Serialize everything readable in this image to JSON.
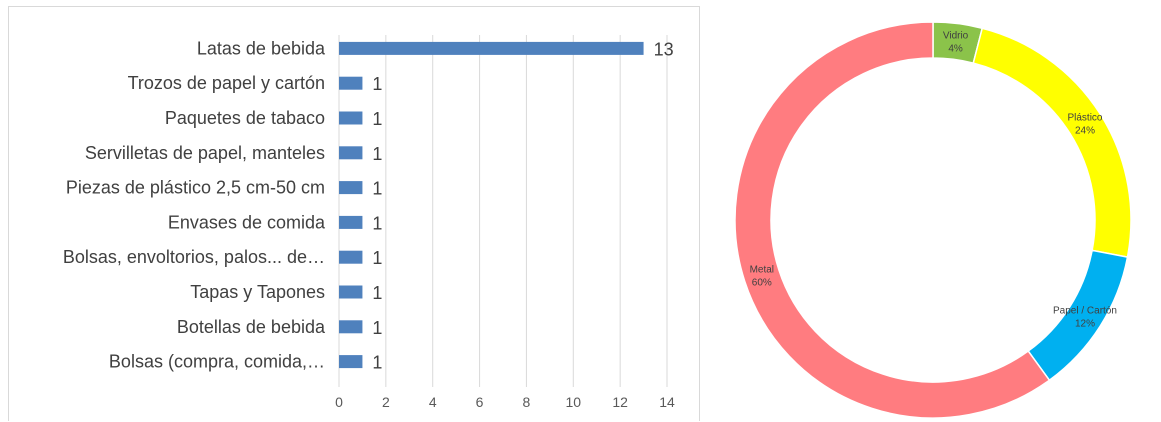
{
  "chart_data": [
    {
      "type": "bar",
      "orientation": "horizontal",
      "categories": [
        "Latas de bebida",
        "Trozos de papel y cartón",
        "Paquetes de tabaco",
        "Servilletas de papel, manteles",
        "Piezas de plástico 2,5 cm-50 cm",
        "Envases de comida",
        "Bolsas, envoltorios, palos... de…",
        "Tapas y Tapones",
        "Botellas de bebida",
        "Bolsas (compra, comida,…"
      ],
      "values": [
        13,
        1,
        1,
        1,
        1,
        1,
        1,
        1,
        1,
        1
      ],
      "data_labels": [
        "13",
        "1",
        "1",
        "1",
        "1",
        "1",
        "1",
        "1",
        "1",
        "1"
      ],
      "xlim": [
        0,
        14
      ],
      "x_ticks": [
        "0",
        "2",
        "4",
        "6",
        "8",
        "10",
        "12",
        "14"
      ],
      "grid": true,
      "bar_color": "#4f81bd",
      "title": "",
      "xlabel": "",
      "ylabel": ""
    },
    {
      "type": "pie",
      "style": "donut",
      "start_angle_deg": 0,
      "slices": [
        {
          "label": "Vidrio",
          "pct_label": "4%",
          "value": 4,
          "color": "#8bc34a"
        },
        {
          "label": "Plástico",
          "pct_label": "24%",
          "value": 24,
          "color": "#ffff00"
        },
        {
          "label": "Papel / Cartón",
          "pct_label": "12%",
          "value": 12,
          "color": "#00b0f0"
        },
        {
          "label": "Metal",
          "pct_label": "60%",
          "value": 60,
          "color": "#ff7c80"
        }
      ],
      "title": ""
    }
  ]
}
